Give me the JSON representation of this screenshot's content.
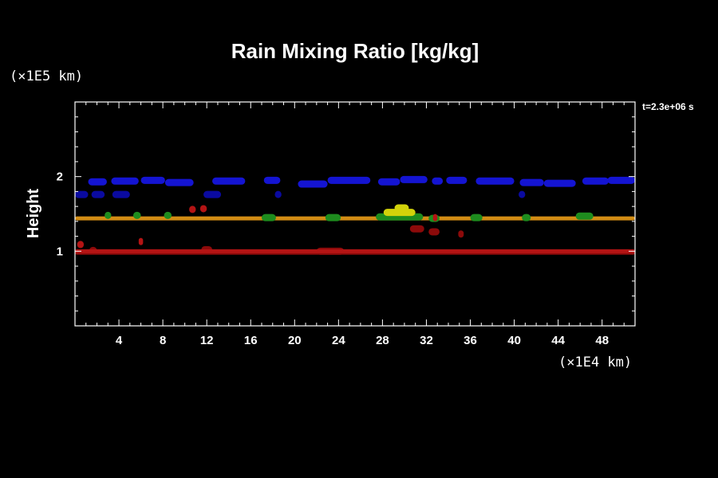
{
  "chart_data": {
    "type": "heatmap",
    "title": "Rain Mixing Ratio [kg/kg]",
    "time_label": "t=2.3e+06 s",
    "xlabel": "",
    "ylabel": "Height",
    "x_unit": "(×1E4 km)",
    "y_unit": "(×1E5 km)",
    "xlim": [
      0,
      51
    ],
    "ylim": [
      0,
      3
    ],
    "x_ticks": [
      4,
      8,
      12,
      16,
      20,
      24,
      28,
      32,
      36,
      40,
      44,
      48
    ],
    "y_ticks": [
      1,
      2
    ],
    "grid": false,
    "colors": {
      "blue": "#1414d2",
      "dark_blue": "#0a0aa0",
      "orange": "#d28c14",
      "green": "#1e8c1e",
      "yellow": "#d2d20a",
      "dark_red": "#8c0a0a",
      "bright_red": "#b41414"
    },
    "bands": [
      {
        "color": "blue",
        "segments": [
          [
            1.2,
            2.9,
            1.93
          ],
          [
            3.3,
            5.8,
            1.94
          ],
          [
            6.0,
            8.2,
            1.95
          ],
          [
            8.2,
            10.8,
            1.92
          ],
          [
            12.5,
            15.5,
            1.94
          ],
          [
            17.2,
            18.7,
            1.95
          ],
          [
            20.3,
            23.0,
            1.9
          ],
          [
            23.0,
            26.9,
            1.95
          ],
          [
            27.6,
            29.6,
            1.93
          ],
          [
            29.6,
            32.1,
            1.96
          ],
          [
            32.5,
            33.5,
            1.94
          ],
          [
            33.8,
            35.7,
            1.95
          ],
          [
            36.5,
            40.0,
            1.94
          ],
          [
            40.5,
            42.7,
            1.92
          ],
          [
            42.7,
            45.6,
            1.91
          ],
          [
            46.2,
            48.6,
            1.94
          ],
          [
            48.5,
            51.0,
            1.95
          ]
        ]
      },
      {
        "color": "dark_blue",
        "segments": [
          [
            0.0,
            1.2,
            1.76
          ],
          [
            1.5,
            2.7,
            1.76
          ],
          [
            3.4,
            5.0,
            1.76
          ],
          [
            11.7,
            13.3,
            1.76
          ],
          [
            18.2,
            18.8,
            1.76
          ],
          [
            40.4,
            41.0,
            1.76
          ]
        ]
      },
      {
        "color": "orange",
        "segments": [
          [
            0.0,
            51.0,
            1.44
          ]
        ]
      },
      {
        "color": "green",
        "segments": [
          [
            2.7,
            3.3,
            1.48
          ],
          [
            5.3,
            6.0,
            1.48
          ],
          [
            8.1,
            8.8,
            1.48
          ],
          [
            17.0,
            18.3,
            1.45
          ],
          [
            22.8,
            24.2,
            1.45
          ],
          [
            27.4,
            31.7,
            1.46
          ],
          [
            32.2,
            33.2,
            1.44
          ],
          [
            36.0,
            37.1,
            1.45
          ],
          [
            40.7,
            41.5,
            1.45
          ],
          [
            45.6,
            47.2,
            1.47
          ]
        ]
      },
      {
        "color": "yellow",
        "segments": [
          [
            28.1,
            31.0,
            1.52
          ],
          [
            29.1,
            30.4,
            1.58
          ]
        ]
      },
      {
        "color": "dark_red",
        "segments": [
          [
            0.0,
            51.0,
            0.98
          ],
          [
            1.3,
            2.0,
            1.01
          ],
          [
            11.5,
            12.5,
            1.02
          ],
          [
            22.0,
            24.5,
            1.0
          ],
          [
            30.5,
            31.8,
            1.3
          ],
          [
            32.2,
            33.2,
            1.26
          ],
          [
            34.9,
            35.4,
            1.23
          ]
        ]
      },
      {
        "color": "bright_red",
        "segments": [
          [
            0.0,
            51.0,
            1.0
          ],
          [
            0.2,
            0.8,
            1.09
          ],
          [
            5.8,
            6.2,
            1.13
          ],
          [
            10.4,
            11.0,
            1.56
          ],
          [
            11.4,
            12.0,
            1.57
          ],
          [
            32.6,
            33.0,
            1.45
          ]
        ]
      }
    ]
  }
}
